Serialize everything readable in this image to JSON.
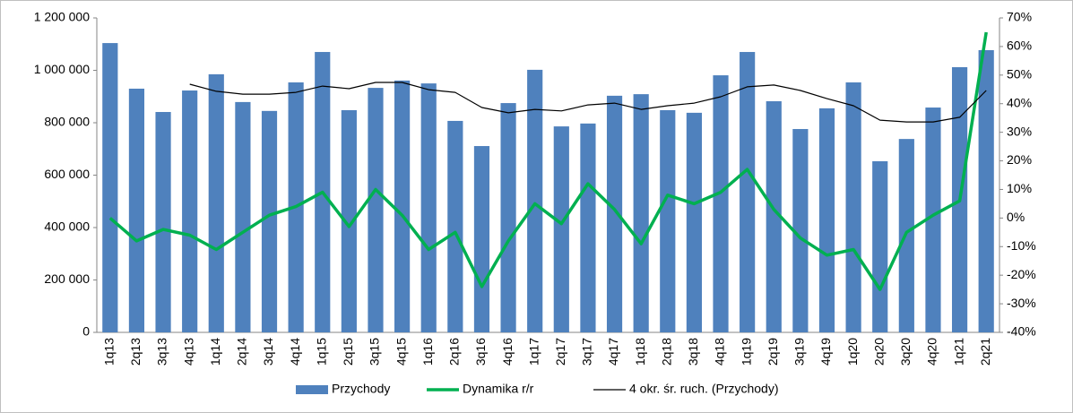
{
  "chart_data": {
    "type": "bar_line",
    "categories": [
      "1q13",
      "2q13",
      "3q13",
      "4q13",
      "1q14",
      "2q14",
      "3q14",
      "4q14",
      "1q15",
      "2q15",
      "3q15",
      "4q15",
      "1q16",
      "2q16",
      "3q16",
      "4q16",
      "1q17",
      "2q17",
      "3q17",
      "4q17",
      "1q18",
      "2q18",
      "3q18",
      "4q18",
      "1q19",
      "2q19",
      "3q19",
      "4q19",
      "1q20",
      "2q20",
      "3q20",
      "4q20",
      "1q21",
      "2q21"
    ],
    "series": [
      {
        "name": "Przychody",
        "type": "bar",
        "color": "#4f81bd",
        "values": [
          1104000,
          930000,
          841000,
          923000,
          985000,
          879000,
          845000,
          954000,
          1070000,
          848000,
          933000,
          961000,
          950000,
          807000,
          711000,
          875000,
          1002000,
          786000,
          797000,
          903000,
          909000,
          848000,
          838000,
          981000,
          1070000,
          882000,
          776000,
          855000,
          954000,
          653000,
          738000,
          858000,
          1012000,
          1077000
        ]
      },
      {
        "name": "Dynamika r/r",
        "type": "line",
        "axis": "y2",
        "color": "#00b050",
        "values": [
          0,
          -8,
          -4,
          -6,
          -11,
          -5,
          1,
          4,
          9,
          -3,
          10,
          1,
          -11,
          -5,
          -24,
          -8,
          5,
          -2,
          12,
          3,
          -9,
          8,
          5,
          9,
          17,
          3,
          -7,
          -13,
          -11,
          -25,
          -5,
          1,
          6,
          65
        ]
      },
      {
        "name": "4 okr. śr. ruch. (Przychody)",
        "type": "line",
        "color": "#000000",
        "values": [
          null,
          null,
          null,
          947000,
          920000,
          909000,
          909000,
          916000,
          940000,
          930000,
          954000,
          954000,
          926000,
          916000,
          858000,
          838000,
          851000,
          845000,
          868000,
          875000,
          851000,
          865000,
          875000,
          899000,
          937000,
          944000,
          923000,
          892000,
          865000,
          810000,
          803000,
          803000,
          821000,
          923000
        ]
      }
    ],
    "ylim": [
      0,
      1200000
    ],
    "yticks": [
      0,
      {
        "value": 200000,
        "label": "200 000"
      },
      {
        "value": 400000,
        "label": "400 000"
      },
      {
        "value": 600000,
        "label": "600 000"
      },
      {
        "value": 800000,
        "label": "800 000"
      },
      {
        "value": 1000000,
        "label": "1 000 000"
      },
      {
        "value": 1200000,
        "label": "1 200 000"
      }
    ],
    "y2lim": [
      -40,
      70
    ],
    "y2ticks": [
      {
        "value": -40,
        "label": "-40%"
      },
      {
        "value": -30,
        "label": "-30%"
      },
      {
        "value": -20,
        "label": "-20%"
      },
      {
        "value": -10,
        "label": "-10%"
      },
      {
        "value": 0,
        "label": "0%"
      },
      {
        "value": 10,
        "label": "10%"
      },
      {
        "value": 20,
        "label": "20%"
      },
      {
        "value": 30,
        "label": "30%"
      },
      {
        "value": 40,
        "label": "40%"
      },
      {
        "value": 50,
        "label": "50%"
      },
      {
        "value": 60,
        "label": "60%"
      },
      {
        "value": 70,
        "label": "70%"
      }
    ],
    "legend": "bottom"
  }
}
